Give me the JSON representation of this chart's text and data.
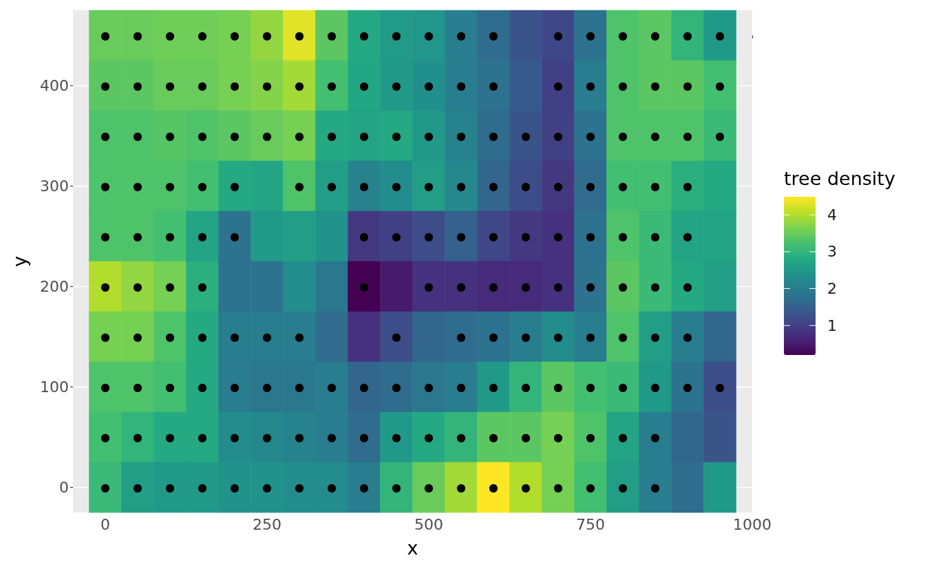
{
  "chart_data": {
    "type": "heatmap",
    "xlabel": "x",
    "ylabel": "y",
    "clabel": "tree density",
    "categories": [
      null,
      "0",
      null,
      null,
      null,
      null,
      "250",
      null,
      null,
      null,
      null,
      "500",
      null,
      null,
      null,
      null,
      "750",
      null,
      null,
      null,
      null,
      "1000"
    ],
    "y_categories": [
      null,
      "400",
      null,
      "300",
      null,
      "200",
      null,
      "100",
      null,
      "0"
    ],
    "clim": [
      0.2,
      4.49
    ],
    "cticks": [
      1,
      2,
      3,
      4
    ],
    "grid": true,
    "cells": [
      [
        null,
        3.5,
        3.5,
        3.55,
        3.55,
        3.6,
        3.8,
        4.3,
        3.4,
        2.8,
        2.55,
        2.45,
        2.0,
        1.7,
        1.3,
        1.1,
        1.8,
        3.3,
        3.4,
        3.0,
        2.5,
        null
      ],
      [
        null,
        3.4,
        3.4,
        3.5,
        3.5,
        3.6,
        3.7,
        3.9,
        3.2,
        2.75,
        2.5,
        2.35,
        2.0,
        1.8,
        1.4,
        1.0,
        2.0,
        3.3,
        3.4,
        3.4,
        3.2,
        null
      ],
      [
        null,
        3.3,
        3.3,
        3.35,
        3.3,
        3.4,
        3.5,
        3.6,
        2.8,
        2.7,
        2.8,
        2.5,
        2.1,
        1.7,
        1.3,
        1.0,
        1.8,
        3.3,
        3.3,
        3.3,
        3.1,
        null
      ],
      [
        null,
        3.3,
        3.3,
        3.3,
        3.2,
        2.8,
        2.7,
        3.3,
        2.6,
        2.1,
        2.3,
        2.6,
        2.2,
        1.6,
        1.2,
        0.9,
        1.7,
        3.2,
        3.2,
        2.9,
        2.8,
        null
      ],
      [
        null,
        3.3,
        3.3,
        3.2,
        2.7,
        1.8,
        2.5,
        2.6,
        2.4,
        0.9,
        1.0,
        1.2,
        1.5,
        1.1,
        0.9,
        0.8,
        1.8,
        3.3,
        3.1,
        2.7,
        2.7,
        null
      ],
      [
        null,
        4.0,
        3.8,
        3.6,
        2.9,
        1.8,
        1.8,
        2.3,
        1.9,
        0.2,
        0.5,
        0.8,
        0.8,
        0.7,
        0.7,
        0.8,
        1.8,
        3.4,
        3.1,
        2.8,
        2.6,
        null
      ],
      [
        null,
        3.6,
        3.6,
        3.3,
        2.8,
        2.0,
        2.0,
        2.0,
        1.7,
        0.8,
        1.2,
        1.6,
        1.7,
        1.8,
        2.0,
        2.3,
        2.0,
        3.3,
        2.6,
        2.0,
        1.6,
        null
      ],
      [
        null,
        3.3,
        3.3,
        3.2,
        2.8,
        2.0,
        1.9,
        1.9,
        2.0,
        1.6,
        1.7,
        1.9,
        2.0,
        2.5,
        3.0,
        3.4,
        3.2,
        3.1,
        2.5,
        1.8,
        1.2,
        null
      ],
      [
        null,
        3.2,
        3.0,
        2.8,
        2.8,
        2.3,
        2.2,
        2.1,
        2.0,
        1.7,
        2.5,
        2.8,
        3.0,
        3.4,
        3.4,
        3.6,
        3.3,
        2.7,
        2.0,
        1.6,
        1.3,
        null
      ],
      [
        null,
        3.1,
        2.6,
        2.5,
        2.5,
        2.4,
        2.4,
        2.3,
        2.3,
        2.0,
        3.0,
        3.5,
        3.9,
        4.49,
        4.0,
        3.6,
        3.2,
        2.6,
        2.0,
        1.7,
        2.5,
        null
      ]
    ],
    "cell_labels": [
      [
        null,
        "●",
        "●",
        "●",
        "●",
        "●",
        "●",
        "●",
        "●",
        "●",
        "●",
        "●",
        "●",
        "●",
        null,
        "●",
        "●",
        "●",
        "●",
        "●",
        "●",
        null
      ],
      [
        null,
        "●",
        "●",
        "●",
        "●",
        "●",
        "●",
        "●",
        "●",
        "●",
        "●",
        "●",
        "●",
        "●",
        null,
        "●",
        "●",
        "●",
        "●",
        "●",
        "●",
        null
      ],
      [
        null,
        "●",
        "●",
        "●",
        "●",
        "●",
        "●",
        "●",
        "●",
        "●",
        "●",
        "●",
        "●",
        "●",
        "●",
        "●",
        "●",
        "●",
        "●",
        "●",
        "●",
        null
      ],
      [
        null,
        "●",
        "●",
        "●",
        "●",
        "●",
        null,
        "●",
        "●",
        "●",
        "●",
        "●",
        "●",
        "●",
        "●",
        "●",
        "●",
        "●",
        "●",
        "●",
        null,
        null
      ],
      [
        null,
        "●",
        "●",
        "●",
        "●",
        "●",
        null,
        null,
        null,
        "●",
        "●",
        "●",
        "●",
        "●",
        "●",
        "●",
        "●",
        "●",
        "●",
        "●",
        null,
        null
      ],
      [
        null,
        "●",
        "●",
        "●",
        "●",
        null,
        null,
        null,
        null,
        "●",
        null,
        "●",
        "●",
        "●",
        "●",
        "●",
        "●",
        "●",
        "●",
        "●",
        null,
        null
      ],
      [
        null,
        "●",
        "●",
        "●",
        "●",
        "●",
        "●",
        "●",
        null,
        null,
        "●",
        null,
        "●",
        "●",
        "●",
        "●",
        "●",
        "●",
        "●",
        "●",
        null,
        null
      ],
      [
        null,
        "●",
        "●",
        "●",
        "●",
        "●",
        "●",
        "●",
        "●",
        "●",
        "●",
        "●",
        "●",
        "●",
        "●",
        "●",
        "●",
        "●",
        "●",
        "●",
        "●",
        null
      ],
      [
        null,
        "●",
        "●",
        "●",
        "●",
        "●",
        "●",
        "●",
        "●",
        "●",
        "●",
        "●",
        "●",
        "●",
        "●",
        "●",
        "●",
        "●",
        "●",
        null,
        null,
        null
      ],
      [
        null,
        "●",
        "●",
        "●",
        "●",
        "●",
        "●",
        "●",
        "●",
        "●",
        "●",
        "●",
        "●",
        "●",
        "●",
        "●",
        "●",
        "●",
        "●",
        null,
        null,
        null
      ]
    ]
  }
}
